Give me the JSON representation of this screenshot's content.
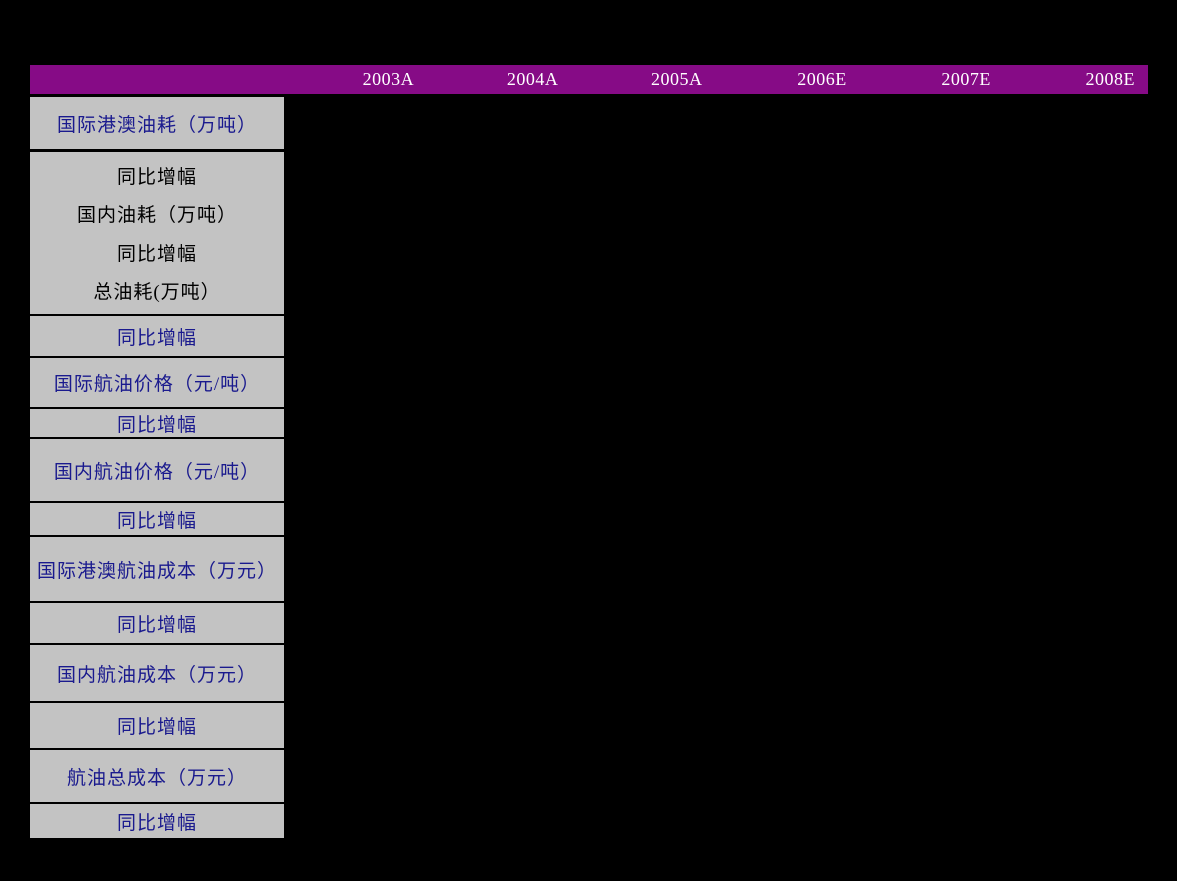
{
  "page": {
    "background": "#000000"
  },
  "table": {
    "header": {
      "background": "#860B86",
      "text_color": "#FFFFFF",
      "columns": [
        "2003A",
        "2004A",
        "2005A",
        "2006E",
        "2007E",
        "2008E"
      ]
    },
    "label_column": {
      "background": "#C3C3C3",
      "navy_text_color": "#1A1A8E",
      "black_text_color": "#000000",
      "rows": [
        {
          "label": "国际港澳油耗（万吨）",
          "color": "navy"
        },
        {
          "lines": [
            "同比增幅",
            "国内油耗（万吨）",
            "同比增幅",
            "总油耗(万吨）"
          ],
          "color": "black"
        },
        {
          "label": "同比增幅",
          "color": "navy"
        },
        {
          "label": "国际航油价格（元/吨）",
          "color": "navy"
        },
        {
          "label": "同比增幅",
          "color": "navy"
        },
        {
          "label": "国内航油价格（元/吨）",
          "color": "navy"
        },
        {
          "label": "同比增幅",
          "color": "navy"
        },
        {
          "label": "国际港澳航油成本（万元）",
          "color": "navy"
        },
        {
          "label": "同比增幅",
          "color": "navy"
        },
        {
          "label": "国内航油成本（万元）",
          "color": "navy"
        },
        {
          "label": "同比增幅",
          "color": "navy"
        },
        {
          "label": "航油总成本（万元）",
          "color": "navy"
        },
        {
          "label": "同比增幅",
          "color": "navy"
        }
      ]
    }
  }
}
